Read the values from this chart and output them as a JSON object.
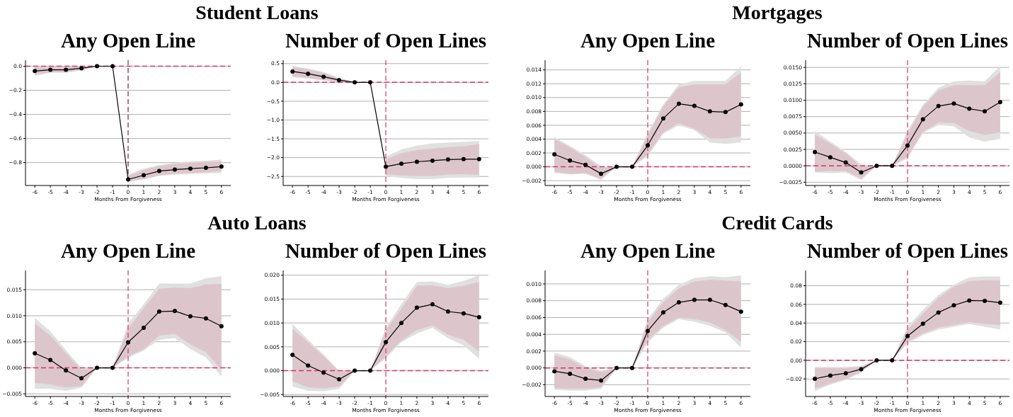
{
  "chart_data": [
    {
      "type": "line",
      "title": "Any Open Line",
      "annotations": [
        "Student Loans"
      ],
      "xlabel": "Months From Forgiveness",
      "x": [
        -6,
        -5,
        -4,
        -3,
        -2,
        -1,
        0,
        1,
        2,
        3,
        4,
        5,
        6
      ],
      "xlim": [
        -6.6,
        6.6
      ],
      "xticks": [
        -6,
        -5,
        -4,
        -3,
        -2,
        -1,
        0,
        1,
        2,
        3,
        4,
        5,
        6
      ],
      "ylim": [
        -0.99,
        0.05
      ],
      "yticks": [
        {
          "value": -0.8,
          "label": "−0.8"
        },
        {
          "value": -0.6,
          "label": "−0.6"
        },
        {
          "value": -0.4,
          "label": "−0.4"
        },
        {
          "value": -0.2,
          "label": "−0.2"
        },
        {
          "value": 0,
          "label": "0.0"
        }
      ],
      "grid": "y",
      "marker": "circle",
      "line_style": "solid",
      "ref_lines": [
        {
          "axis": "y",
          "value": 0,
          "color": "#d6336c",
          "line_style": "dashed"
        },
        {
          "axis": "x",
          "value": 0,
          "color": "#8e1537",
          "line_style": "dashed"
        }
      ],
      "series": [
        {
          "color": "#e0e0e0",
          "values": [
            null,
            null,
            null,
            null,
            null,
            null,
            null,
            null,
            null,
            null,
            null,
            null,
            null
          ],
          "lower": [
            -0.08,
            -0.055,
            -0.055,
            -0.035,
            0,
            null,
            -0.96,
            -0.94,
            -0.91,
            -0.9,
            -0.895,
            -0.89,
            -0.885
          ],
          "upper": [
            -0.005,
            -0.005,
            -0.005,
            0,
            0,
            null,
            -0.9,
            -0.85,
            -0.82,
            -0.8,
            -0.79,
            -0.785,
            -0.775
          ]
        },
        {
          "color": "#000000",
          "values": [
            -0.04,
            -0.03,
            -0.03,
            -0.017,
            0,
            0,
            -0.94,
            -0.905,
            -0.87,
            -0.858,
            -0.85,
            -0.843,
            -0.833
          ],
          "lower": [
            -0.07,
            -0.05,
            -0.05,
            -0.03,
            0,
            null,
            -0.955,
            -0.935,
            -0.905,
            -0.89,
            -0.885,
            -0.88,
            -0.87
          ],
          "upper": [
            -0.01,
            -0.01,
            -0.01,
            -0.005,
            0,
            null,
            -0.91,
            -0.86,
            -0.83,
            -0.81,
            -0.8,
            -0.795,
            -0.79
          ]
        }
      ]
    },
    {
      "type": "line",
      "title": "Number of Open Lines",
      "xlabel": "Months From Forgiveness",
      "x": [
        -6,
        -5,
        -4,
        -3,
        -2,
        -1,
        0,
        1,
        2,
        3,
        4,
        5,
        6
      ],
      "xlim": [
        -6.6,
        6.6
      ],
      "xticks": [
        -6,
        -5,
        -4,
        -3,
        -2,
        -1,
        0,
        1,
        2,
        3,
        4,
        5,
        6
      ],
      "ylim": [
        -2.74,
        0.59
      ],
      "yticks": [
        {
          "value": -2.5,
          "label": "−2.5"
        },
        {
          "value": -2,
          "label": "−2.0"
        },
        {
          "value": -1.5,
          "label": "−1.5"
        },
        {
          "value": -1,
          "label": "−1.0"
        },
        {
          "value": -0.5,
          "label": "−0.5"
        },
        {
          "value": 0,
          "label": "0.0"
        },
        {
          "value": 0.5,
          "label": "0.5"
        }
      ],
      "grid": "y",
      "marker": "circle",
      "line_style": "solid",
      "ref_lines": [
        {
          "axis": "y",
          "value": 0,
          "color": "#d6336c",
          "line_style": "dashed"
        },
        {
          "axis": "x",
          "value": 0,
          "color": "#d6336c",
          "line_style": "dashed"
        }
      ],
      "series": [
        {
          "color": "#e0e0e0",
          "values": [
            null,
            null,
            null,
            null,
            null,
            null,
            null,
            null,
            null,
            null,
            null,
            null,
            null
          ],
          "lower": [
            0.14,
            0.1,
            0.05,
            0,
            0,
            null,
            -2.5,
            -2.54,
            -2.57,
            -2.57,
            -2.54,
            -2.53,
            -2.53
          ],
          "upper": [
            0.44,
            0.37,
            0.28,
            0.12,
            0,
            null,
            -1.98,
            -1.78,
            -1.68,
            -1.62,
            -1.6,
            -1.58,
            -1.56
          ]
        },
        {
          "color": "#000000",
          "values": [
            0.29,
            0.23,
            0.15,
            0.06,
            0,
            0,
            -2.24,
            -2.16,
            -2.11,
            -2.08,
            -2.05,
            -2.04,
            -2.04
          ],
          "lower": [
            0.16,
            0.12,
            0.07,
            0.01,
            0,
            null,
            -2.45,
            -2.47,
            -2.49,
            -2.49,
            -2.45,
            -2.44,
            -2.46
          ],
          "upper": [
            0.41,
            0.34,
            0.25,
            0.1,
            0,
            null,
            -2.05,
            -1.88,
            -1.8,
            -1.76,
            -1.72,
            -1.7,
            -1.64
          ]
        }
      ]
    },
    {
      "type": "line",
      "title": "Any Open Line",
      "annotations": [
        "Mortgages"
      ],
      "xlabel": "Months From Forgiveness",
      "x": [
        -6,
        -5,
        -4,
        -3,
        -2,
        -1,
        0,
        1,
        2,
        3,
        4,
        5,
        6
      ],
      "xlim": [
        -6.6,
        6.6
      ],
      "xticks": [
        -6,
        -5,
        -4,
        -3,
        -2,
        -1,
        0,
        1,
        2,
        3,
        4,
        5,
        6
      ],
      "ylim": [
        -0.0027,
        0.0154
      ],
      "yticks": [
        {
          "value": -0.002,
          "label": "−0.002"
        },
        {
          "value": 0,
          "label": "0.000"
        },
        {
          "value": 0.002,
          "label": "0.002"
        },
        {
          "value": 0.004,
          "label": "0.004"
        },
        {
          "value": 0.006,
          "label": "0.006"
        },
        {
          "value": 0.008,
          "label": "0.008"
        },
        {
          "value": 0.01,
          "label": "0.010"
        },
        {
          "value": 0.012,
          "label": "0.012"
        },
        {
          "value": 0.014,
          "label": "0.014"
        }
      ],
      "grid": "y",
      "marker": "circle",
      "line_style": "solid",
      "ref_lines": [
        {
          "axis": "y",
          "value": 0,
          "color": "#d6336c",
          "line_style": "dashed"
        },
        {
          "axis": "x",
          "value": 0,
          "color": "#d6336c",
          "line_style": "dashed"
        }
      ],
      "series": [
        {
          "color": "#e0e0e0",
          "values": [
            null,
            null,
            null,
            null,
            null,
            null,
            null,
            null,
            null,
            null,
            null,
            null,
            null
          ],
          "lower": [
            -0.0009,
            -0.0011,
            -0.001,
            -0.0019,
            0,
            0,
            0.0015,
            0.0048,
            0.006,
            0.0053,
            0.0035,
            0.0033,
            0.0035
          ],
          "upper": [
            0.0043,
            0.003,
            0.0017,
            0.0001,
            0,
            0,
            0.0049,
            0.009,
            0.0119,
            0.0124,
            0.0124,
            0.0124,
            0.0145
          ]
        },
        {
          "color": "#000000",
          "values": [
            0.0018,
            0.0009,
            0.0003,
            -0.001,
            0,
            0,
            0.0031,
            0.007,
            0.0091,
            0.0088,
            0.008,
            0.0079,
            0.009
          ],
          "lower": [
            -0.0007,
            -0.001,
            -0.0009,
            -0.0017,
            0,
            0,
            0.0018,
            0.005,
            0.0063,
            0.0055,
            0.0041,
            0.0041,
            0.0044
          ],
          "upper": [
            0.004,
            0.0028,
            0.0014,
            -0.0002,
            0,
            0,
            0.0045,
            0.0088,
            0.0115,
            0.0119,
            0.0119,
            0.0119,
            0.0136
          ]
        }
      ]
    },
    {
      "type": "line",
      "title": "Number of Open Lines",
      "xlabel": "Months From Forgiveness",
      "x": [
        -6,
        -5,
        -4,
        -3,
        -2,
        -1,
        0,
        1,
        2,
        3,
        4,
        5,
        6
      ],
      "xlim": [
        -6.6,
        6.6
      ],
      "xticks": [
        -6,
        -5,
        -4,
        -3,
        -2,
        -1,
        0,
        1,
        2,
        3,
        4,
        5,
        6
      ],
      "ylim": [
        -0.003,
        0.0161
      ],
      "yticks": [
        {
          "value": -0.0025,
          "label": "−0.0025"
        },
        {
          "value": 0,
          "label": "0.0000"
        },
        {
          "value": 0.0025,
          "label": "0.0025"
        },
        {
          "value": 0.005,
          "label": "0.0050"
        },
        {
          "value": 0.0075,
          "label": "0.0075"
        },
        {
          "value": 0.01,
          "label": "0.0100"
        },
        {
          "value": 0.0125,
          "label": "0.0125"
        },
        {
          "value": 0.015,
          "label": "0.0150"
        }
      ],
      "grid": "y",
      "marker": "circle",
      "line_style": "solid",
      "ref_lines": [
        {
          "axis": "y",
          "value": 0,
          "color": "#d6336c",
          "line_style": "dashed"
        },
        {
          "axis": "x",
          "value": 0,
          "color": "#d6336c",
          "line_style": "dashed"
        }
      ],
      "series": [
        {
          "color": "#e0e0e0",
          "values": [
            null,
            null,
            null,
            null,
            null,
            null,
            null,
            null,
            null,
            null,
            null,
            null,
            null
          ],
          "lower": [
            -0.001,
            -0.0011,
            -0.001,
            -0.0022,
            0,
            0,
            0.0011,
            0.005,
            0.0062,
            0.006,
            0.0043,
            0.0037,
            0.0041
          ],
          "upper": [
            0.0053,
            0.0037,
            0.0021,
            0.0002,
            0,
            0,
            0.0053,
            0.0093,
            0.0119,
            0.0129,
            0.013,
            0.0129,
            0.0152
          ]
        },
        {
          "color": "#000000",
          "values": [
            0.0021,
            0.0013,
            0.0005,
            -0.001,
            0,
            0,
            0.0031,
            0.0071,
            0.0091,
            0.0095,
            0.0087,
            0.0083,
            0.0097
          ],
          "lower": [
            -0.0009,
            -0.0008,
            -0.0008,
            -0.0019,
            0,
            0,
            0.0014,
            0.0052,
            0.0066,
            0.0065,
            0.0053,
            0.0047,
            0.0051
          ],
          "upper": [
            0.0048,
            0.0034,
            0.0019,
            -0.0001,
            0,
            0,
            0.0049,
            0.009,
            0.0115,
            0.0123,
            0.0123,
            0.0123,
            0.0143
          ]
        }
      ]
    },
    {
      "type": "line",
      "title": "Any Open Line",
      "annotations": [
        "Auto Loans"
      ],
      "xlabel": "Months From Forgiveness",
      "x": [
        -6,
        -5,
        -4,
        -3,
        -2,
        -1,
        0,
        1,
        2,
        3,
        4,
        5,
        6
      ],
      "xlim": [
        -6.6,
        6.6
      ],
      "xticks": [
        -6,
        -5,
        -4,
        -3,
        -2,
        -1,
        0,
        1,
        2,
        3,
        4,
        5,
        6
      ],
      "ylim": [
        -0.0055,
        0.0187
      ],
      "yticks": [
        {
          "value": -0.005,
          "label": "−0.005"
        },
        {
          "value": 0,
          "label": "0.000"
        },
        {
          "value": 0.005,
          "label": "0.005"
        },
        {
          "value": 0.01,
          "label": "0.010"
        },
        {
          "value": 0.015,
          "label": "0.015"
        }
      ],
      "grid": "y",
      "marker": "circle",
      "line_style": "solid",
      "ref_lines": [
        {
          "axis": "y",
          "value": 0,
          "color": "#d6336c",
          "line_style": "dashed"
        },
        {
          "axis": "x",
          "value": 0,
          "color": "#d6336c",
          "line_style": "dashed"
        }
      ],
      "series": [
        {
          "color": "#e0e0e0",
          "values": [
            null,
            null,
            null,
            null,
            null,
            null,
            null,
            null,
            null,
            null,
            null,
            null,
            null
          ],
          "lower": [
            -0.004,
            -0.004,
            -0.0044,
            -0.0038,
            0,
            0,
            0.0019,
            0.0033,
            0.0054,
            0.0057,
            0.0036,
            0.002,
            -0.0017
          ],
          "upper": [
            0.0096,
            0.007,
            0.0034,
            0,
            0,
            0,
            0.0085,
            0.0122,
            0.0162,
            0.0162,
            0.0162,
            0.0172,
            0.0176
          ]
        },
        {
          "color": "#000000",
          "values": [
            0.0028,
            0.0015,
            -0.0005,
            -0.002,
            0,
            0,
            0.0049,
            0.0077,
            0.0108,
            0.0109,
            0.0099,
            0.0095,
            0.008
          ],
          "lower": [
            -0.0029,
            -0.0032,
            -0.0038,
            -0.0035,
            0,
            0,
            0.0022,
            0.0036,
            0.0062,
            0.0065,
            0.0045,
            0.003,
            -0.0003
          ],
          "upper": [
            0.0085,
            0.0062,
            0.0028,
            -0.0004,
            0,
            0,
            0.0075,
            0.0115,
            0.0152,
            0.0154,
            0.0153,
            0.016,
            0.0161
          ]
        }
      ]
    },
    {
      "type": "line",
      "title": "Number of Open Lines",
      "xlabel": "Months From Forgiveness",
      "x": [
        -6,
        -5,
        -4,
        -3,
        -2,
        -1,
        0,
        1,
        2,
        3,
        4,
        5,
        6
      ],
      "xlim": [
        -6.6,
        6.6
      ],
      "xticks": [
        -6,
        -5,
        -4,
        -3,
        -2,
        -1,
        0,
        1,
        2,
        3,
        4,
        5,
        6
      ],
      "ylim": [
        -0.0054,
        0.021
      ],
      "yticks": [
        {
          "value": -0.005,
          "label": "−0.005"
        },
        {
          "value": 0,
          "label": "0.000"
        },
        {
          "value": 0.005,
          "label": "0.005"
        },
        {
          "value": 0.01,
          "label": "0.010"
        },
        {
          "value": 0.015,
          "label": "0.015"
        },
        {
          "value": 0.02,
          "label": "0.020"
        }
      ],
      "grid": "y",
      "marker": "circle",
      "line_style": "solid",
      "ref_lines": [
        {
          "axis": "y",
          "value": 0,
          "color": "#d6336c",
          "line_style": "dashed"
        },
        {
          "axis": "x",
          "value": 0,
          "color": "#d6336c",
          "line_style": "dashed"
        }
      ],
      "series": [
        {
          "color": "#e0e0e0",
          "values": [
            null,
            null,
            null,
            null,
            null,
            null,
            null,
            null,
            null,
            null,
            null,
            null,
            null
          ],
          "lower": [
            -0.0033,
            -0.0042,
            -0.0043,
            -0.0038,
            0,
            0,
            0.0026,
            0.006,
            0.0078,
            0.009,
            0.0068,
            0.0053,
            0.0025
          ],
          "upper": [
            0.0098,
            0.0065,
            0.0034,
            0,
            0,
            0,
            0.009,
            0.014,
            0.0186,
            0.0187,
            0.018,
            0.0188,
            0.02
          ]
        },
        {
          "color": "#000000",
          "values": [
            0.0033,
            0.0011,
            -0.0004,
            -0.0018,
            0,
            0,
            0.006,
            0.01,
            0.0132,
            0.0139,
            0.0124,
            0.012,
            0.0112
          ],
          "lower": [
            -0.0022,
            -0.0035,
            -0.0037,
            -0.0033,
            0,
            0,
            0.003,
            0.0063,
            0.0085,
            0.0095,
            0.0075,
            0.0065,
            0.004
          ],
          "upper": [
            0.0088,
            0.006,
            0.003,
            -0.0002,
            0,
            0,
            0.0085,
            0.013,
            0.0178,
            0.0179,
            0.0173,
            0.0178,
            0.0186
          ]
        }
      ]
    },
    {
      "type": "line",
      "title": "Any Open Line",
      "annotations": [
        "Credit Cards"
      ],
      "xlabel": "Months From Forgiveness",
      "x": [
        -6,
        -5,
        -4,
        -3,
        -2,
        -1,
        0,
        1,
        2,
        3,
        4,
        5,
        6
      ],
      "xlim": [
        -6.6,
        6.6
      ],
      "xticks": [
        -6,
        -5,
        -4,
        -3,
        -2,
        -1,
        0,
        1,
        2,
        3,
        4,
        5,
        6
      ],
      "ylim": [
        -0.0034,
        0.0116
      ],
      "yticks": [
        {
          "value": -0.002,
          "label": "−0.002"
        },
        {
          "value": 0,
          "label": "0.000"
        },
        {
          "value": 0.002,
          "label": "0.002"
        },
        {
          "value": 0.004,
          "label": "0.004"
        },
        {
          "value": 0.006,
          "label": "0.006"
        },
        {
          "value": 0.008,
          "label": "0.008"
        },
        {
          "value": 0.01,
          "label": "0.010"
        }
      ],
      "grid": "y",
      "marker": "circle",
      "line_style": "solid",
      "ref_lines": [
        {
          "axis": "y",
          "value": 0,
          "color": "#d6336c",
          "line_style": "dashed"
        },
        {
          "axis": "x",
          "value": 0,
          "color": "#d6336c",
          "line_style": "dashed"
        }
      ],
      "series": [
        {
          "color": "#e0e0e0",
          "values": [
            null,
            null,
            null,
            null,
            null,
            null,
            null,
            null,
            null,
            null,
            null,
            null,
            null
          ],
          "lower": [
            -0.0026,
            -0.0027,
            -0.0027,
            -0.0025,
            0,
            0,
            0.003,
            0.0048,
            0.0058,
            0.0055,
            0.005,
            0.0042,
            0.0024
          ],
          "upper": [
            0.0018,
            0.0013,
            0.0002,
            -0.0003,
            0,
            0,
            0.0058,
            0.0082,
            0.0099,
            0.0107,
            0.0109,
            0.0108,
            0.011
          ]
        },
        {
          "color": "#000000",
          "values": [
            -0.0004,
            -0.0007,
            -0.0013,
            -0.0015,
            0,
            0,
            0.0044,
            0.0066,
            0.0078,
            0.0081,
            0.0081,
            0.0075,
            0.0067
          ],
          "lower": [
            -0.0024,
            -0.0025,
            -0.0025,
            -0.0023,
            0,
            0,
            0.0033,
            0.005,
            0.006,
            0.0058,
            0.0054,
            0.0045,
            0.0031
          ],
          "upper": [
            0.0015,
            0.001,
            0,
            -0.0005,
            0,
            0,
            0.0055,
            0.0078,
            0.0095,
            0.0103,
            0.0105,
            0.0104,
            0.0103
          ]
        }
      ]
    },
    {
      "type": "line",
      "title": "Number of Open Lines",
      "xlabel": "Months From Forgiveness",
      "x": [
        -6,
        -5,
        -4,
        -3,
        -2,
        -1,
        0,
        1,
        2,
        3,
        4,
        5,
        6
      ],
      "xlim": [
        -6.6,
        6.6
      ],
      "xticks": [
        -6,
        -5,
        -4,
        -3,
        -2,
        -1,
        0,
        1,
        2,
        3,
        4,
        5,
        6
      ],
      "ylim": [
        -0.0388,
        0.0964
      ],
      "yticks": [
        {
          "value": -0.02,
          "label": "−0.02"
        },
        {
          "value": 0,
          "label": "0.00"
        },
        {
          "value": 0.02,
          "label": "0.02"
        },
        {
          "value": 0.04,
          "label": "0.04"
        },
        {
          "value": 0.06,
          "label": "0.06"
        },
        {
          "value": 0.08,
          "label": "0.08"
        }
      ],
      "grid": "y",
      "marker": "circle",
      "line_style": "solid",
      "ref_lines": [
        {
          "axis": "y",
          "value": 0,
          "color": "#d6336c",
          "line_style": "dashed"
        },
        {
          "axis": "x",
          "value": 0,
          "color": "#d6336c",
          "line_style": "dashed"
        }
      ],
      "series": [
        {
          "color": "#e0e0e0",
          "values": [
            null,
            null,
            null,
            null,
            null,
            null,
            null,
            null,
            null,
            null,
            null,
            null,
            null
          ],
          "lower": [
            -0.033,
            -0.026,
            -0.021,
            -0.013,
            0,
            0,
            0.018,
            0.027,
            0.033,
            0.036,
            0.039,
            0.036,
            0.033
          ],
          "upper": [
            -0.007,
            -0.007,
            -0.007,
            -0.006,
            0,
            0,
            0.036,
            0.054,
            0.07,
            0.081,
            0.089,
            0.09,
            0.09
          ]
        },
        {
          "color": "#000000",
          "values": [
            -0.0198,
            -0.0163,
            -0.0139,
            -0.0095,
            0,
            0,
            0.026,
            0.0393,
            0.0513,
            0.059,
            0.0642,
            0.0638,
            0.0618
          ],
          "lower": [
            -0.03,
            -0.025,
            -0.02,
            -0.0125,
            0,
            0,
            0.02,
            0.029,
            0.035,
            0.038,
            0.041,
            0.039,
            0.038
          ],
          "upper": [
            -0.008,
            -0.0085,
            -0.0085,
            -0.007,
            0,
            0,
            0.033,
            0.05,
            0.067,
            0.079,
            0.085,
            0.086,
            0.086
          ]
        }
      ]
    }
  ]
}
